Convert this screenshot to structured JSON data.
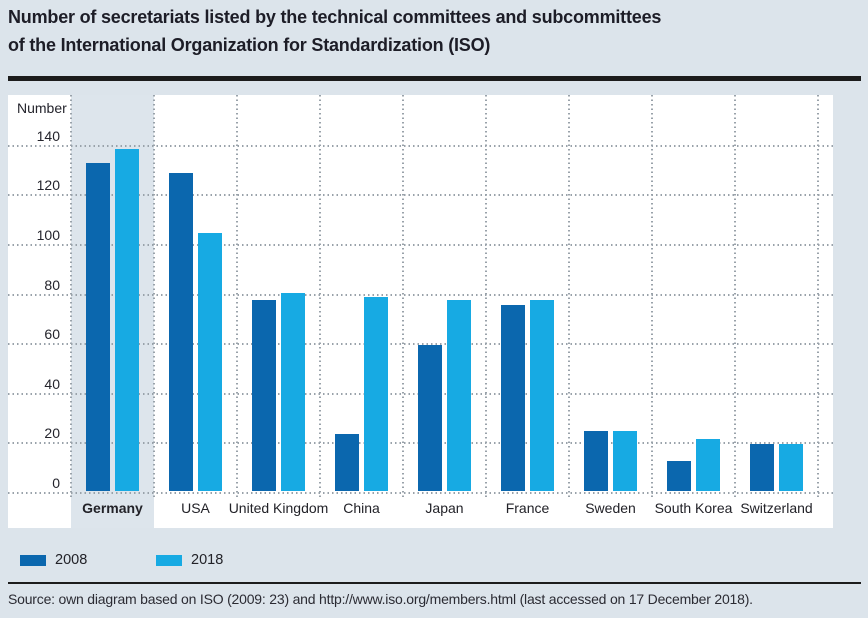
{
  "page": {
    "background_color": "#dce4eb",
    "title_line1": "Number of secretariats listed by the technical committees and subcommittees",
    "title_line2": "of the International Organization for Standardization (ISO)",
    "source": "Source: own diagram based on ISO (2009: 23) and http://www.iso.org/members.html (last accessed on 17 December 2018)."
  },
  "chart_data": {
    "type": "bar",
    "title": "Number of secretariats listed by the technical committees and subcommittees of the International Organization for Standardization (ISO)",
    "ylabel": "Number",
    "xlabel": "",
    "categories": [
      "Germany",
      "USA",
      "United Kingdom",
      "China",
      "Japan",
      "France",
      "Sweden",
      "South Korea",
      "Switzerland"
    ],
    "highlighted_category": "Germany",
    "series": [
      {
        "name": "2008",
        "color": "#0b67ae",
        "values": [
          132,
          128,
          77,
          23,
          59,
          75,
          24,
          12,
          19
        ]
      },
      {
        "name": "2018",
        "color": "#17aae3",
        "values": [
          138,
          104,
          80,
          78,
          77,
          77,
          24,
          21,
          19
        ]
      }
    ],
    "ylim": [
      0,
      160
    ],
    "yticks": [
      0,
      20,
      40,
      60,
      80,
      100,
      120,
      140
    ],
    "grid": "dotted",
    "legend_position": "bottom-left",
    "plot_background": "#ffffff",
    "highlight_background": "#dde5ec"
  }
}
